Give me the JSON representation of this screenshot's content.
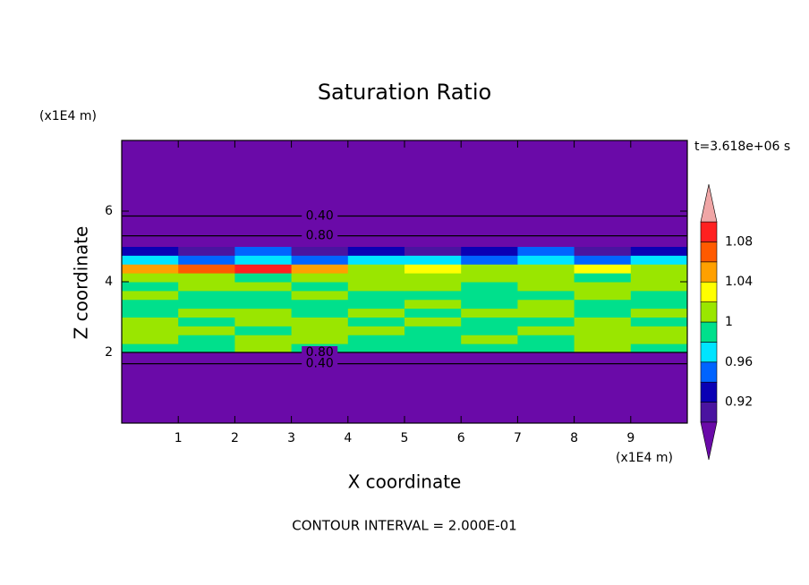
{
  "chart_data": {
    "type": "contour",
    "title": "Saturation Ratio",
    "xlabel": "X coordinate",
    "ylabel": "Z coordinate",
    "xunit": "(x1E4 m)",
    "yunit": "(x1E4 m)",
    "time_label": "t=3.618e+06 s",
    "footer": "CONTOUR INTERVAL = 2.000E-01",
    "xlim": [
      0,
      10
    ],
    "ylim": [
      0,
      8
    ],
    "xticks": [
      1,
      2,
      3,
      4,
      5,
      6,
      7,
      8,
      9
    ],
    "yticks": [
      2,
      4,
      6
    ],
    "xbins": [
      0,
      1,
      2,
      3,
      4,
      5,
      6,
      7,
      8,
      9,
      10
    ],
    "ybins": [
      0,
      1,
      1.8,
      2,
      2.25,
      2.5,
      2.75,
      3,
      3.25,
      3.5,
      3.75,
      4,
      4.25,
      4.5,
      4.75,
      5,
      5.5,
      6,
      7,
      8
    ],
    "z": [
      [
        0.2,
        0.2,
        0.2,
        0.2,
        0.2,
        0.2,
        0.2,
        0.2,
        0.2,
        0.2
      ],
      [
        0.5,
        0.5,
        0.5,
        0.5,
        0.5,
        0.5,
        0.5,
        0.5,
        0.5,
        0.5
      ],
      [
        0.85,
        0.85,
        0.85,
        0.85,
        0.85,
        0.85,
        0.85,
        0.85,
        0.85,
        0.85
      ],
      [
        0.99,
        0.99,
        1.01,
        0.99,
        0.99,
        0.99,
        0.99,
        0.99,
        1.01,
        0.99
      ],
      [
        1.01,
        0.99,
        1.01,
        1.01,
        0.99,
        0.99,
        1.01,
        0.99,
        1.01,
        1.01
      ],
      [
        1.01,
        1.01,
        0.99,
        1.01,
        1.01,
        0.99,
        0.99,
        1.01,
        1.01,
        1.01
      ],
      [
        1.01,
        0.99,
        1.01,
        1.01,
        0.99,
        1.01,
        0.99,
        0.99,
        1.01,
        0.99
      ],
      [
        0.99,
        1.01,
        1.01,
        0.99,
        1.01,
        0.99,
        1.01,
        1.01,
        0.99,
        1.01
      ],
      [
        0.99,
        0.99,
        0.99,
        0.99,
        0.99,
        1.01,
        0.99,
        1.01,
        0.99,
        0.99
      ],
      [
        1.01,
        0.99,
        0.99,
        1.01,
        0.99,
        0.99,
        0.99,
        0.99,
        1.01,
        0.99
      ],
      [
        0.99,
        1.01,
        1.01,
        0.99,
        1.01,
        1.01,
        0.99,
        1.01,
        1.01,
        1.01
      ],
      [
        1.01,
        1.01,
        0.99,
        1.01,
        1.01,
        1.01,
        1.01,
        1.01,
        0.99,
        1.01
      ],
      [
        1.05,
        1.07,
        1.09,
        1.05,
        1.01,
        1.03,
        1.01,
        1.01,
        1.03,
        1.01
      ],
      [
        0.97,
        0.95,
        0.97,
        0.95,
        0.97,
        0.97,
        0.95,
        0.97,
        0.95,
        0.97
      ],
      [
        0.93,
        0.91,
        0.95,
        0.91,
        0.93,
        0.91,
        0.93,
        0.95,
        0.91,
        0.93
      ],
      [
        0.85,
        0.85,
        0.85,
        0.85,
        0.85,
        0.85,
        0.85,
        0.85,
        0.85,
        0.85
      ],
      [
        0.6,
        0.6,
        0.6,
        0.6,
        0.6,
        0.6,
        0.6,
        0.6,
        0.6,
        0.6
      ],
      [
        0.3,
        0.3,
        0.3,
        0.3,
        0.3,
        0.3,
        0.3,
        0.3,
        0.3,
        0.3
      ],
      [
        0.1,
        0.1,
        0.1,
        0.1,
        0.1,
        0.1,
        0.1,
        0.1,
        0.1,
        0.1
      ]
    ],
    "levels": [
      0.9,
      0.92,
      0.94,
      0.96,
      0.98,
      1,
      1.02,
      1.04,
      1.06,
      1.08,
      1.1
    ],
    "colors": [
      "#6a0aa8",
      "#4a14a0",
      "#0a00b4",
      "#0064ff",
      "#00e4ff",
      "#00e08c",
      "#9ae600",
      "#ffff00",
      "#ffa000",
      "#ff5a00",
      "#ff2020",
      "#f0a6a6"
    ],
    "colorbar_ticks": [
      0.92,
      0.96,
      1,
      1.04,
      1.08
    ],
    "contours": [
      {
        "value": 0.4,
        "label": "0.40",
        "y": 5.86
      },
      {
        "value": 0.8,
        "label": "0.80",
        "y": 5.3
      },
      {
        "value": 0.8,
        "label": "0.80",
        "y": 2.0
      },
      {
        "value": 0.4,
        "label": "0.40",
        "y": 1.68
      }
    ]
  }
}
